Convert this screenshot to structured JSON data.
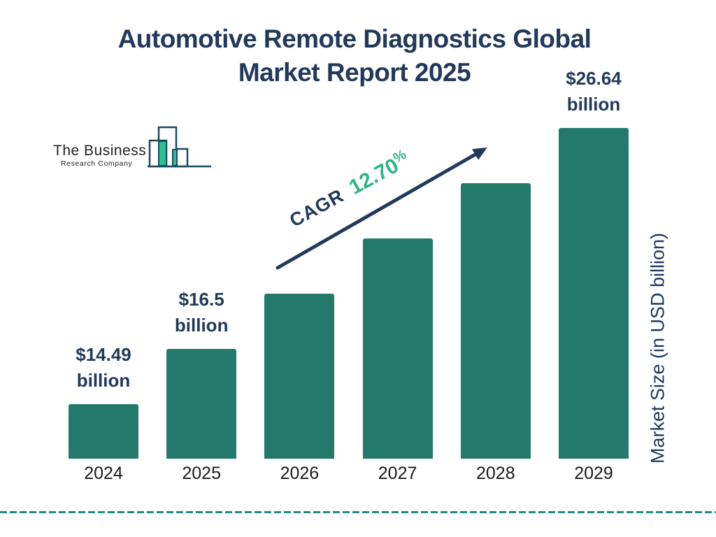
{
  "title": {
    "line1": "Automotive Remote Diagnostics Global",
    "line2": "Market Report 2025"
  },
  "logo": {
    "line1": "The Business",
    "line2": "Research Company"
  },
  "cagr": {
    "prefix": "CAGR",
    "value": "12.70",
    "percent_sign": "%"
  },
  "y_axis_label": "Market Size (in USD billion)",
  "chart_data": {
    "type": "bar",
    "title": "Automotive Remote Diagnostics Global Market Report 2025",
    "categories": [
      "2024",
      "2025",
      "2026",
      "2027",
      "2028",
      "2029"
    ],
    "values": [
      14.49,
      16.5,
      18.6,
      20.96,
      23.62,
      26.64
    ],
    "value_labels": [
      {
        "line1": "$14.49",
        "line2": "billion"
      },
      {
        "line1": "$16.5",
        "line2": "billion"
      },
      null,
      null,
      null,
      {
        "line1": "$26.64",
        "line2": "billion"
      }
    ],
    "cagr_label": "CAGR 12.70%",
    "xlabel": "",
    "ylabel": "Market Size (in USD billion)",
    "unit": "USD billion",
    "grid": false,
    "legend": false,
    "bar_color": "#237a6a"
  },
  "colors": {
    "navy": "#21395a",
    "bar_teal": "#237a6a",
    "accent_green": "#2eb486",
    "dash_teal": "#1e8c80",
    "logo_outline": "#1d4a5e",
    "logo_green": "#29c392"
  }
}
